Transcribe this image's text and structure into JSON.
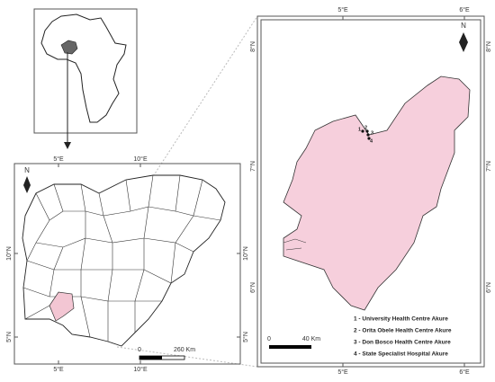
{
  "nigeria_map": {
    "north": "N",
    "lon_labels": [
      "5°E",
      "10°E"
    ],
    "lat_labels": [
      "10°N",
      "5°N"
    ],
    "scale": {
      "start": "0",
      "end": "260 Km"
    }
  },
  "ondo_map": {
    "north": "N",
    "lon_labels": [
      "5°E",
      "6°E"
    ],
    "lat_labels": [
      "8°N",
      "7°N",
      "6°N"
    ],
    "scale": {
      "start": "0",
      "end": "40 Km"
    },
    "points": [
      "1",
      "2",
      "3",
      "4"
    ],
    "legend": [
      "1 - University Health Centre Akure",
      "2 - Orita Obele Health Centre Akure",
      "3 - Don Bosco Health Centre Akure",
      "4 - State Specialist Hospital Akure"
    ]
  }
}
